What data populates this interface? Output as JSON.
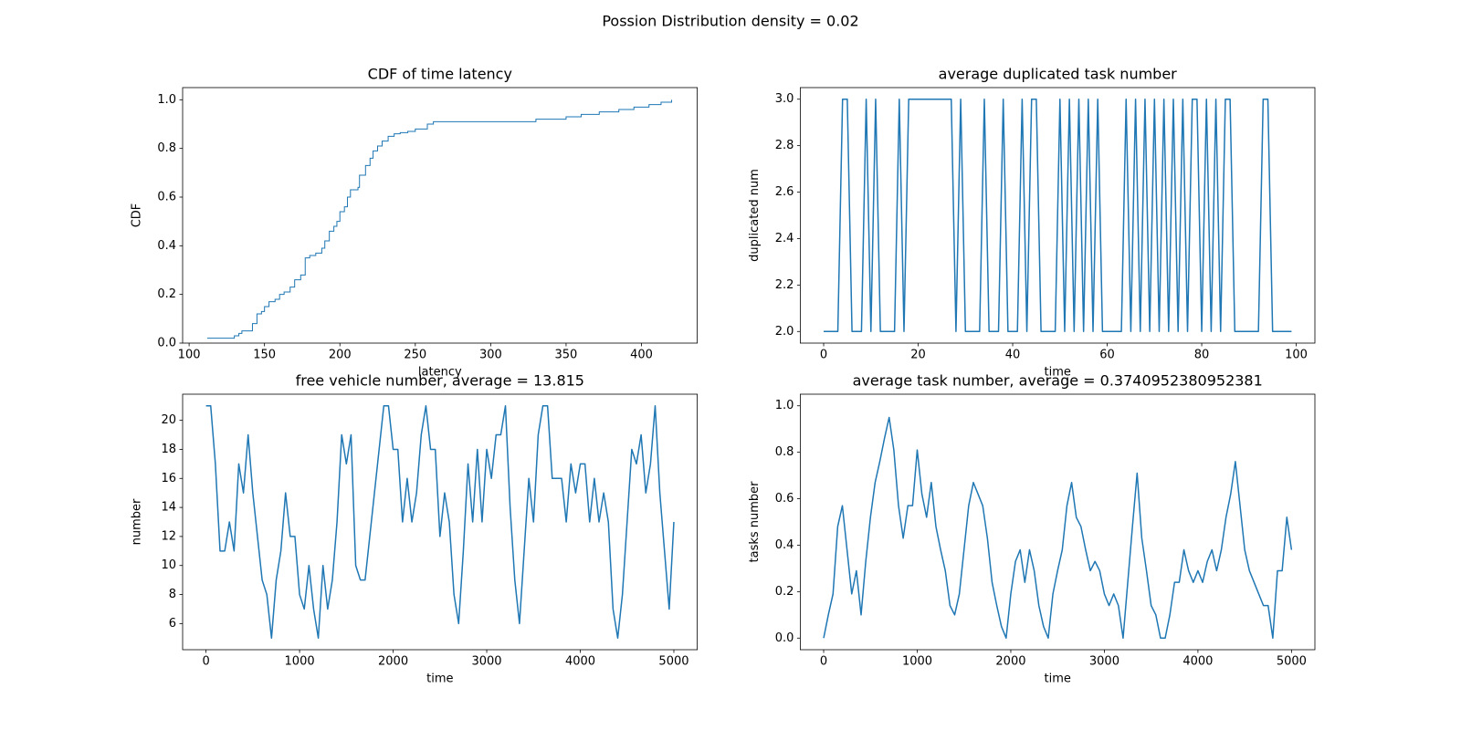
{
  "title": "Possion Distribution density = 0.02",
  "chart_data": [
    {
      "type": "step",
      "title": "CDF of time latency",
      "x_label": "latency",
      "y_label": "CDF",
      "color": "#1f77b4",
      "x": [
        112,
        128,
        130,
        133,
        135,
        140,
        142,
        145,
        148,
        150,
        153,
        157,
        160,
        163,
        167,
        170,
        174,
        177,
        180,
        184,
        188,
        190,
        193,
        196,
        198,
        200,
        203,
        205,
        207,
        212,
        213,
        217,
        220,
        222,
        225,
        228,
        232,
        236,
        240,
        245,
        250,
        258,
        262,
        310,
        330,
        350,
        360,
        372,
        385,
        395,
        405,
        413,
        420
      ],
      "values": [
        0.02,
        0.02,
        0.03,
        0.04,
        0.05,
        0.05,
        0.08,
        0.12,
        0.13,
        0.15,
        0.17,
        0.18,
        0.2,
        0.21,
        0.23,
        0.26,
        0.28,
        0.35,
        0.36,
        0.37,
        0.39,
        0.42,
        0.46,
        0.48,
        0.5,
        0.54,
        0.56,
        0.6,
        0.63,
        0.64,
        0.69,
        0.73,
        0.76,
        0.79,
        0.81,
        0.83,
        0.85,
        0.86,
        0.865,
        0.87,
        0.88,
        0.9,
        0.91,
        0.91,
        0.92,
        0.93,
        0.94,
        0.95,
        0.96,
        0.97,
        0.98,
        0.99,
        1.0
      ],
      "xlim": [
        95.7,
        437
      ],
      "ylim": [
        0,
        1.05
      ],
      "xticks": [
        100,
        150,
        200,
        250,
        300,
        350,
        400
      ],
      "yticks": [
        {
          "value": 0,
          "label": "0.0"
        },
        {
          "value": 0.2,
          "label": "0.2"
        },
        {
          "value": 0.4,
          "label": "0.4"
        },
        {
          "value": 0.6,
          "label": "0.6"
        },
        {
          "value": 0.8,
          "label": "0.8"
        },
        {
          "value": 1,
          "label": "1.0"
        }
      ]
    },
    {
      "type": "line",
      "title": "average duplicated task number",
      "x_label": "time",
      "y_label": "duplicated num",
      "color": "#1f77b4",
      "x": [
        0,
        1,
        2,
        3,
        4,
        5,
        6,
        7,
        8,
        9,
        10,
        11,
        12,
        13,
        14,
        15,
        16,
        17,
        18,
        19,
        20,
        21,
        22,
        23,
        24,
        25,
        26,
        27,
        28,
        29,
        30,
        31,
        32,
        33,
        34,
        35,
        36,
        37,
        38,
        39,
        40,
        41,
        42,
        43,
        44,
        45,
        46,
        47,
        48,
        49,
        50,
        51,
        52,
        53,
        54,
        55,
        56,
        57,
        58,
        59,
        60,
        61,
        62,
        63,
        64,
        65,
        66,
        67,
        68,
        69,
        70,
        71,
        72,
        73,
        74,
        75,
        76,
        77,
        78,
        79,
        80,
        81,
        82,
        83,
        84,
        85,
        86,
        87,
        88,
        89,
        90,
        91,
        92,
        93,
        94,
        95,
        96,
        97,
        98,
        99
      ],
      "values": [
        2,
        2,
        2,
        2,
        3,
        3,
        2,
        2,
        2,
        3,
        2,
        3,
        2,
        2,
        2,
        2,
        3,
        2,
        3,
        3,
        3,
        3,
        3,
        3,
        3,
        3,
        3,
        3,
        2,
        3,
        2,
        2,
        2,
        2,
        3,
        2,
        2,
        2,
        3,
        2,
        2,
        2,
        3,
        2,
        3,
        3,
        2,
        2,
        2,
        2,
        3,
        2,
        3,
        2,
        3,
        2,
        3,
        2,
        3,
        2,
        2,
        2,
        2,
        2,
        3,
        2,
        3,
        2,
        3,
        2,
        3,
        2,
        3,
        2,
        3,
        2,
        3,
        2,
        3,
        3,
        2,
        3,
        2,
        3,
        2,
        3,
        3,
        2,
        2,
        2,
        2,
        2,
        2,
        3,
        3,
        2,
        2,
        2,
        2,
        2
      ],
      "xlim": [
        -4.95,
        103.95
      ],
      "ylim": [
        1.95,
        3.05
      ],
      "xticks": [
        0,
        20,
        40,
        60,
        80,
        100
      ],
      "yticks": [
        {
          "value": 2,
          "label": "2.0"
        },
        {
          "value": 2.2,
          "label": "2.2"
        },
        {
          "value": 2.4,
          "label": "2.4"
        },
        {
          "value": 2.6,
          "label": "2.6"
        },
        {
          "value": 2.8,
          "label": "2.8"
        },
        {
          "value": 3,
          "label": "3.0"
        }
      ]
    },
    {
      "type": "line",
      "title": "free vehicle number, average = 13.815",
      "x_label": "time",
      "y_label": "number",
      "color": "#1f77b4",
      "x": [
        0,
        50,
        100,
        150,
        200,
        250,
        300,
        350,
        400,
        450,
        500,
        550,
        600,
        650,
        700,
        750,
        800,
        850,
        900,
        950,
        1000,
        1050,
        1100,
        1150,
        1200,
        1250,
        1300,
        1350,
        1400,
        1450,
        1500,
        1550,
        1600,
        1650,
        1700,
        1750,
        1800,
        1850,
        1900,
        1950,
        2000,
        2050,
        2100,
        2150,
        2200,
        2250,
        2300,
        2350,
        2400,
        2450,
        2500,
        2550,
        2600,
        2650,
        2700,
        2750,
        2800,
        2850,
        2900,
        2950,
        3000,
        3050,
        3100,
        3150,
        3200,
        3250,
        3300,
        3350,
        3400,
        3450,
        3500,
        3550,
        3600,
        3650,
        3700,
        3750,
        3800,
        3850,
        3900,
        3950,
        4000,
        4050,
        4100,
        4150,
        4200,
        4250,
        4300,
        4350,
        4400,
        4450,
        4500,
        4550,
        4600,
        4650,
        4700,
        4750,
        4800,
        4850,
        4900,
        4950,
        5000
      ],
      "values": [
        21,
        21,
        17,
        11,
        11,
        13,
        11,
        17,
        15,
        19,
        15,
        12,
        9,
        8,
        5,
        9,
        11,
        15,
        12,
        12,
        8,
        7,
        10,
        7,
        5,
        10,
        7,
        9,
        13,
        19,
        17,
        19,
        10,
        9,
        9,
        12,
        15,
        18,
        21,
        21,
        18,
        18,
        13,
        16,
        13,
        15,
        19,
        21,
        18,
        18,
        12,
        15,
        13,
        8,
        6,
        11,
        17,
        13,
        18,
        13,
        18,
        16,
        19,
        19,
        21,
        14,
        9,
        6,
        11,
        16,
        13,
        19,
        21,
        21,
        16,
        16,
        16,
        13,
        17,
        15,
        17,
        17,
        13,
        16,
        13,
        15,
        13,
        7,
        5,
        8,
        13,
        18,
        17,
        19,
        15,
        17,
        21,
        15,
        11,
        7,
        13
      ],
      "xlim": [
        -250,
        5250
      ],
      "ylim": [
        4.2,
        21.8
      ],
      "xticks": [
        0,
        1000,
        2000,
        3000,
        4000,
        5000
      ],
      "yticks": [
        6,
        8,
        10,
        12,
        14,
        16,
        18,
        20
      ]
    },
    {
      "type": "line",
      "title": "average task number, average = 0.3740952380952381",
      "x_label": "time",
      "y_label": "tasks number",
      "color": "#1f77b4",
      "x": [
        0,
        50,
        100,
        150,
        200,
        250,
        300,
        350,
        400,
        450,
        500,
        550,
        600,
        650,
        700,
        750,
        800,
        850,
        900,
        950,
        1000,
        1050,
        1100,
        1150,
        1200,
        1250,
        1300,
        1350,
        1400,
        1450,
        1500,
        1550,
        1600,
        1650,
        1700,
        1750,
        1800,
        1850,
        1900,
        1950,
        2000,
        2050,
        2100,
        2150,
        2200,
        2250,
        2300,
        2350,
        2400,
        2450,
        2500,
        2550,
        2600,
        2650,
        2700,
        2750,
        2800,
        2850,
        2900,
        2950,
        3000,
        3050,
        3100,
        3150,
        3200,
        3250,
        3300,
        3350,
        3400,
        3450,
        3500,
        3550,
        3600,
        3650,
        3700,
        3750,
        3800,
        3850,
        3900,
        3950,
        4000,
        4050,
        4100,
        4150,
        4200,
        4250,
        4300,
        4350,
        4400,
        4450,
        4500,
        4550,
        4600,
        4650,
        4700,
        4750,
        4800,
        4850,
        4900,
        4950,
        5000
      ],
      "values": [
        0,
        0.1,
        0.19,
        0.48,
        0.57,
        0.38,
        0.19,
        0.29,
        0.1,
        0.33,
        0.52,
        0.67,
        0.76,
        0.86,
        0.95,
        0.81,
        0.57,
        0.43,
        0.57,
        0.57,
        0.81,
        0.62,
        0.52,
        0.67,
        0.48,
        0.38,
        0.29,
        0.14,
        0.1,
        0.19,
        0.38,
        0.57,
        0.67,
        0.62,
        0.57,
        0.43,
        0.24,
        0.14,
        0.05,
        0,
        0.19,
        0.33,
        0.38,
        0.24,
        0.38,
        0.29,
        0.14,
        0.05,
        0,
        0.19,
        0.29,
        0.38,
        0.57,
        0.67,
        0.52,
        0.48,
        0.38,
        0.29,
        0.33,
        0.29,
        0.19,
        0.14,
        0.19,
        0.14,
        0,
        0.24,
        0.48,
        0.71,
        0.43,
        0.29,
        0.14,
        0.1,
        0,
        0,
        0.1,
        0.24,
        0.24,
        0.38,
        0.29,
        0.24,
        0.29,
        0.24,
        0.33,
        0.38,
        0.29,
        0.38,
        0.52,
        0.62,
        0.76,
        0.57,
        0.38,
        0.29,
        0.24,
        0.19,
        0.14,
        0.14,
        0,
        0.29,
        0.29,
        0.52,
        0.38
      ],
      "xlim": [
        -250,
        5250
      ],
      "ylim": [
        -0.05,
        1.05
      ],
      "xticks": [
        0,
        1000,
        2000,
        3000,
        4000,
        5000
      ],
      "yticks": [
        {
          "value": 0,
          "label": "0.0"
        },
        {
          "value": 0.2,
          "label": "0.2"
        },
        {
          "value": 0.4,
          "label": "0.4"
        },
        {
          "value": 0.6,
          "label": "0.6"
        },
        {
          "value": 0.8,
          "label": "0.8"
        },
        {
          "value": 1,
          "label": "1.0"
        }
      ]
    }
  ]
}
